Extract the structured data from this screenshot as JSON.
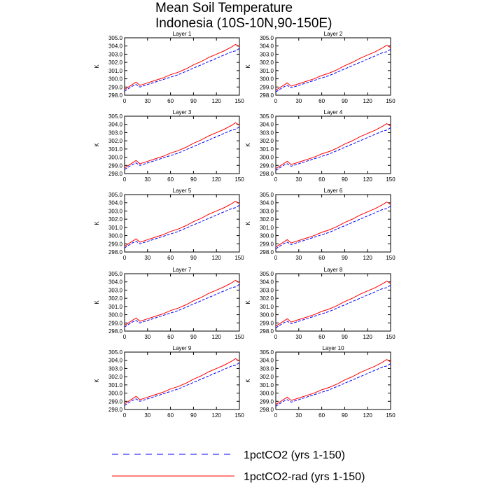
{
  "figure": {
    "title_line1": "Mean Soil Temperature",
    "title_line2": "Indonesia (10S-10N,90-150E)"
  },
  "legend": {
    "items": [
      {
        "label": "1pctCO2 (yrs 1-150)",
        "color": "#0000ff",
        "style": "dashed"
      },
      {
        "label": "1pctCO2-rad (yrs 1-150)",
        "color": "#ff0000",
        "style": "solid"
      }
    ]
  },
  "chart_data": [
    {
      "type": "line",
      "title": "Layer 1",
      "ylabel": "K",
      "xlim": [
        0,
        150
      ],
      "ylim": [
        298.0,
        305.0
      ],
      "xticks": [
        0,
        30,
        60,
        90,
        120,
        150
      ],
      "yticks": [
        298.0,
        299.0,
        300.0,
        301.0,
        302.0,
        303.0,
        304.0,
        305.0
      ],
      "x": [
        0,
        5,
        10,
        15,
        20,
        30,
        40,
        50,
        60,
        70,
        80,
        90,
        100,
        110,
        120,
        130,
        140,
        145,
        150
      ],
      "series": [
        {
          "name": "1pctCO2 (yrs 1-150)",
          "color": "#0000ff",
          "dash": "dashed",
          "values": [
            298.5,
            298.8,
            299.1,
            299.3,
            299.0,
            299.3,
            299.6,
            299.9,
            300.2,
            300.5,
            300.9,
            301.3,
            301.7,
            302.1,
            302.5,
            302.9,
            303.3,
            303.4,
            303.7
          ]
        },
        {
          "name": "1pctCO2-rad (yrs 1-150)",
          "color": "#ff0000",
          "dash": "solid",
          "values": [
            298.7,
            299.0,
            299.3,
            299.6,
            299.2,
            299.5,
            299.8,
            300.1,
            300.5,
            300.8,
            301.2,
            301.7,
            302.1,
            302.6,
            303.0,
            303.4,
            303.9,
            304.2,
            303.9
          ]
        }
      ]
    },
    {
      "type": "line",
      "title": "Layer 2",
      "ylabel": "K",
      "xlim": [
        0,
        150
      ],
      "ylim": [
        298.0,
        305.0
      ],
      "xticks": [
        0,
        30,
        60,
        90,
        120,
        150
      ],
      "yticks": [
        298.0,
        299.0,
        300.0,
        301.0,
        302.0,
        303.0,
        304.0,
        305.0
      ],
      "x": [
        0,
        5,
        10,
        15,
        20,
        30,
        40,
        50,
        60,
        70,
        80,
        90,
        100,
        110,
        120,
        130,
        140,
        145,
        150
      ],
      "series": [
        {
          "name": "1pctCO2 (yrs 1-150)",
          "color": "#0000ff",
          "dash": "dashed",
          "values": [
            298.4,
            298.7,
            299.0,
            299.2,
            298.9,
            299.2,
            299.5,
            299.8,
            300.1,
            300.4,
            300.8,
            301.2,
            301.6,
            302.0,
            302.4,
            302.8,
            303.2,
            303.3,
            303.6
          ]
        },
        {
          "name": "1pctCO2-rad (yrs 1-150)",
          "color": "#ff0000",
          "dash": "solid",
          "values": [
            298.6,
            298.9,
            299.2,
            299.5,
            299.1,
            299.4,
            299.7,
            300.0,
            300.4,
            300.7,
            301.1,
            301.6,
            302.0,
            302.5,
            302.9,
            303.3,
            303.8,
            304.1,
            303.8
          ]
        }
      ]
    },
    {
      "type": "line",
      "title": "Layer 3",
      "ylabel": "K",
      "xlim": [
        0,
        150
      ],
      "ylim": [
        298.0,
        305.0
      ],
      "xticks": [
        0,
        30,
        60,
        90,
        120,
        150
      ],
      "yticks": [
        298.0,
        299.0,
        300.0,
        301.0,
        302.0,
        303.0,
        304.0,
        305.0
      ],
      "x": [
        0,
        5,
        10,
        15,
        20,
        30,
        40,
        50,
        60,
        70,
        80,
        90,
        100,
        110,
        120,
        130,
        140,
        145,
        150
      ],
      "series": [
        {
          "name": "1pctCO2 (yrs 1-150)",
          "color": "#0000ff",
          "dash": "dashed",
          "values": [
            298.5,
            298.8,
            299.1,
            299.3,
            299.0,
            299.3,
            299.6,
            299.9,
            300.2,
            300.5,
            300.9,
            301.3,
            301.7,
            302.1,
            302.5,
            302.9,
            303.3,
            303.4,
            303.7
          ]
        },
        {
          "name": "1pctCO2-rad (yrs 1-150)",
          "color": "#ff0000",
          "dash": "solid",
          "values": [
            298.7,
            299.0,
            299.3,
            299.6,
            299.2,
            299.5,
            299.8,
            300.1,
            300.5,
            300.8,
            301.2,
            301.7,
            302.1,
            302.6,
            303.0,
            303.4,
            303.9,
            304.2,
            303.9
          ]
        }
      ]
    },
    {
      "type": "line",
      "title": "Layer 4",
      "ylabel": "K",
      "xlim": [
        0,
        150
      ],
      "ylim": [
        298.0,
        305.0
      ],
      "xticks": [
        0,
        30,
        60,
        90,
        120,
        150
      ],
      "yticks": [
        298.0,
        299.0,
        300.0,
        301.0,
        302.0,
        303.0,
        304.0,
        305.0
      ],
      "x": [
        0,
        5,
        10,
        15,
        20,
        30,
        40,
        50,
        60,
        70,
        80,
        90,
        100,
        110,
        120,
        130,
        140,
        145,
        150
      ],
      "series": [
        {
          "name": "1pctCO2 (yrs 1-150)",
          "color": "#0000ff",
          "dash": "dashed",
          "values": [
            298.4,
            298.7,
            299.0,
            299.2,
            298.9,
            299.2,
            299.5,
            299.8,
            300.1,
            300.4,
            300.8,
            301.2,
            301.6,
            302.0,
            302.4,
            302.8,
            303.2,
            303.3,
            303.6
          ]
        },
        {
          "name": "1pctCO2-rad (yrs 1-150)",
          "color": "#ff0000",
          "dash": "solid",
          "values": [
            298.6,
            298.9,
            299.2,
            299.5,
            299.1,
            299.4,
            299.7,
            300.0,
            300.4,
            300.7,
            301.1,
            301.6,
            302.0,
            302.5,
            302.9,
            303.3,
            303.8,
            304.1,
            303.8
          ]
        }
      ]
    },
    {
      "type": "line",
      "title": "Layer 5",
      "ylabel": "K",
      "xlim": [
        0,
        150
      ],
      "ylim": [
        298.0,
        305.0
      ],
      "xticks": [
        0,
        30,
        60,
        90,
        120,
        150
      ],
      "yticks": [
        298.0,
        299.0,
        300.0,
        301.0,
        302.0,
        303.0,
        304.0,
        305.0
      ],
      "x": [
        0,
        5,
        10,
        15,
        20,
        30,
        40,
        50,
        60,
        70,
        80,
        90,
        100,
        110,
        120,
        130,
        140,
        145,
        150
      ],
      "series": [
        {
          "name": "1pctCO2 (yrs 1-150)",
          "color": "#0000ff",
          "dash": "dashed",
          "values": [
            298.5,
            298.8,
            299.1,
            299.3,
            299.0,
            299.3,
            299.6,
            299.9,
            300.2,
            300.5,
            300.9,
            301.3,
            301.7,
            302.1,
            302.5,
            302.9,
            303.3,
            303.4,
            303.7
          ]
        },
        {
          "name": "1pctCO2-rad (yrs 1-150)",
          "color": "#ff0000",
          "dash": "solid",
          "values": [
            298.7,
            299.0,
            299.3,
            299.6,
            299.2,
            299.5,
            299.8,
            300.1,
            300.5,
            300.8,
            301.2,
            301.7,
            302.1,
            302.6,
            303.0,
            303.4,
            303.9,
            304.2,
            303.9
          ]
        }
      ]
    },
    {
      "type": "line",
      "title": "Layer 6",
      "ylabel": "K",
      "xlim": [
        0,
        150
      ],
      "ylim": [
        298.0,
        305.0
      ],
      "xticks": [
        0,
        30,
        60,
        90,
        120,
        150
      ],
      "yticks": [
        298.0,
        299.0,
        300.0,
        301.0,
        302.0,
        303.0,
        304.0,
        305.0
      ],
      "x": [
        0,
        5,
        10,
        15,
        20,
        30,
        40,
        50,
        60,
        70,
        80,
        90,
        100,
        110,
        120,
        130,
        140,
        145,
        150
      ],
      "series": [
        {
          "name": "1pctCO2 (yrs 1-150)",
          "color": "#0000ff",
          "dash": "dashed",
          "values": [
            298.4,
            298.7,
            299.0,
            299.2,
            298.9,
            299.2,
            299.5,
            299.8,
            300.1,
            300.4,
            300.8,
            301.2,
            301.6,
            302.0,
            302.4,
            302.8,
            303.2,
            303.3,
            303.6
          ]
        },
        {
          "name": "1pctCO2-rad (yrs 1-150)",
          "color": "#ff0000",
          "dash": "solid",
          "values": [
            298.6,
            298.9,
            299.2,
            299.5,
            299.1,
            299.4,
            299.7,
            300.0,
            300.4,
            300.7,
            301.1,
            301.6,
            302.0,
            302.5,
            302.9,
            303.3,
            303.8,
            304.1,
            303.8
          ]
        }
      ]
    },
    {
      "type": "line",
      "title": "Layer 7",
      "ylabel": "K",
      "xlim": [
        0,
        150
      ],
      "ylim": [
        298.0,
        305.0
      ],
      "xticks": [
        0,
        30,
        60,
        90,
        120,
        150
      ],
      "yticks": [
        298.0,
        299.0,
        300.0,
        301.0,
        302.0,
        303.0,
        304.0,
        305.0
      ],
      "x": [
        0,
        5,
        10,
        15,
        20,
        30,
        40,
        50,
        60,
        70,
        80,
        90,
        100,
        110,
        120,
        130,
        140,
        145,
        150
      ],
      "series": [
        {
          "name": "1pctCO2 (yrs 1-150)",
          "color": "#0000ff",
          "dash": "dashed",
          "values": [
            298.5,
            298.8,
            299.1,
            299.3,
            299.0,
            299.3,
            299.6,
            299.9,
            300.2,
            300.5,
            300.9,
            301.3,
            301.7,
            302.1,
            302.5,
            302.9,
            303.3,
            303.4,
            303.7
          ]
        },
        {
          "name": "1pctCO2-rad (yrs 1-150)",
          "color": "#ff0000",
          "dash": "solid",
          "values": [
            298.7,
            299.0,
            299.3,
            299.6,
            299.2,
            299.5,
            299.8,
            300.1,
            300.5,
            300.8,
            301.2,
            301.7,
            302.1,
            302.6,
            303.0,
            303.4,
            303.9,
            304.2,
            303.9
          ]
        }
      ]
    },
    {
      "type": "line",
      "title": "Layer 8",
      "ylabel": "K",
      "xlim": [
        0,
        150
      ],
      "ylim": [
        298.0,
        305.0
      ],
      "xticks": [
        0,
        30,
        60,
        90,
        120,
        150
      ],
      "yticks": [
        298.0,
        299.0,
        300.0,
        301.0,
        302.0,
        303.0,
        304.0,
        305.0
      ],
      "x": [
        0,
        5,
        10,
        15,
        20,
        30,
        40,
        50,
        60,
        70,
        80,
        90,
        100,
        110,
        120,
        130,
        140,
        145,
        150
      ],
      "series": [
        {
          "name": "1pctCO2 (yrs 1-150)",
          "color": "#0000ff",
          "dash": "dashed",
          "values": [
            298.4,
            298.7,
            299.0,
            299.2,
            298.9,
            299.2,
            299.5,
            299.8,
            300.1,
            300.4,
            300.8,
            301.2,
            301.6,
            302.0,
            302.4,
            302.8,
            303.2,
            303.3,
            303.6
          ]
        },
        {
          "name": "1pctCO2-rad (yrs 1-150)",
          "color": "#ff0000",
          "dash": "solid",
          "values": [
            298.6,
            298.9,
            299.2,
            299.5,
            299.1,
            299.4,
            299.7,
            300.0,
            300.4,
            300.7,
            301.1,
            301.6,
            302.0,
            302.5,
            302.9,
            303.3,
            303.8,
            304.1,
            303.8
          ]
        }
      ]
    },
    {
      "type": "line",
      "title": "Layer 9",
      "ylabel": "K",
      "xlim": [
        0,
        150
      ],
      "ylim": [
        298.0,
        305.0
      ],
      "xticks": [
        0,
        30,
        60,
        90,
        120,
        150
      ],
      "yticks": [
        298.0,
        299.0,
        300.0,
        301.0,
        302.0,
        303.0,
        304.0,
        305.0
      ],
      "x": [
        0,
        5,
        10,
        15,
        20,
        30,
        40,
        50,
        60,
        70,
        80,
        90,
        100,
        110,
        120,
        130,
        140,
        145,
        150
      ],
      "series": [
        {
          "name": "1pctCO2 (yrs 1-150)",
          "color": "#0000ff",
          "dash": "dashed",
          "values": [
            298.5,
            298.8,
            299.1,
            299.3,
            299.0,
            299.3,
            299.6,
            299.9,
            300.2,
            300.5,
            300.9,
            301.3,
            301.7,
            302.1,
            302.5,
            302.9,
            303.3,
            303.4,
            303.7
          ]
        },
        {
          "name": "1pctCO2-rad (yrs 1-150)",
          "color": "#ff0000",
          "dash": "solid",
          "values": [
            298.7,
            299.0,
            299.3,
            299.6,
            299.2,
            299.5,
            299.8,
            300.1,
            300.5,
            300.8,
            301.2,
            301.7,
            302.1,
            302.6,
            303.0,
            303.4,
            303.9,
            304.2,
            303.9
          ]
        }
      ]
    },
    {
      "type": "line",
      "title": "Layer 10",
      "ylabel": "K",
      "xlim": [
        0,
        150
      ],
      "ylim": [
        298.0,
        305.0
      ],
      "xticks": [
        0,
        30,
        60,
        90,
        120,
        150
      ],
      "yticks": [
        298.0,
        299.0,
        300.0,
        301.0,
        302.0,
        303.0,
        304.0,
        305.0
      ],
      "x": [
        0,
        5,
        10,
        15,
        20,
        30,
        40,
        50,
        60,
        70,
        80,
        90,
        100,
        110,
        120,
        130,
        140,
        145,
        150
      ],
      "series": [
        {
          "name": "1pctCO2 (yrs 1-150)",
          "color": "#0000ff",
          "dash": "dashed",
          "values": [
            298.4,
            298.7,
            299.0,
            299.2,
            298.9,
            299.2,
            299.5,
            299.8,
            300.1,
            300.4,
            300.8,
            301.2,
            301.6,
            302.0,
            302.4,
            302.8,
            303.2,
            303.3,
            303.6
          ]
        },
        {
          "name": "1pctCO2-rad (yrs 1-150)",
          "color": "#ff0000",
          "dash": "solid",
          "values": [
            298.6,
            298.9,
            299.2,
            299.5,
            299.1,
            299.4,
            299.7,
            300.0,
            300.4,
            300.7,
            301.1,
            301.6,
            302.0,
            302.5,
            302.9,
            303.3,
            303.8,
            304.1,
            303.8
          ]
        }
      ]
    }
  ]
}
